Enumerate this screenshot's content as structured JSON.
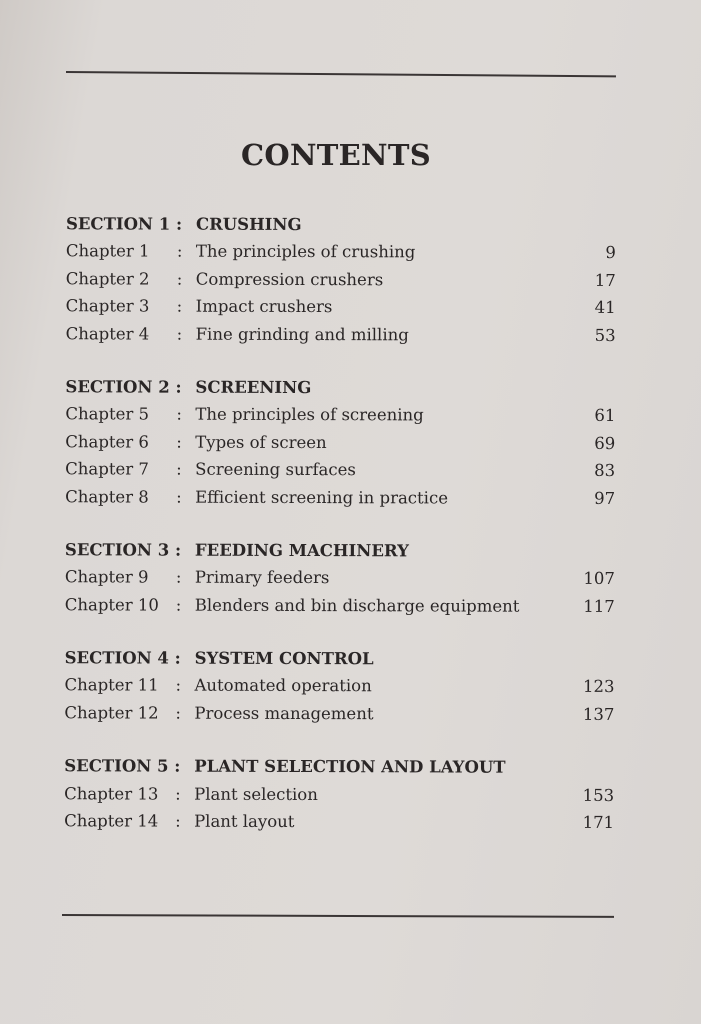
{
  "title": "CONTENTS",
  "sections": [
    {
      "label": "SECTION 1 :",
      "title": "CRUSHING",
      "chapters": [
        {
          "label": "Chapter 1",
          "title": "The principles of crushing",
          "page": "9"
        },
        {
          "label": "Chapter 2",
          "title": "Compression crushers",
          "page": "17"
        },
        {
          "label": "Chapter 3",
          "title": "Impact crushers",
          "page": "41"
        },
        {
          "label": "Chapter 4",
          "title": "Fine grinding and milling",
          "page": "53"
        }
      ]
    },
    {
      "label": "SECTION 2 :",
      "title": "SCREENING",
      "chapters": [
        {
          "label": "Chapter 5",
          "title": "The principles of screening",
          "page": "61"
        },
        {
          "label": "Chapter 6",
          "title": "Types of screen",
          "page": "69"
        },
        {
          "label": "Chapter 7",
          "title": "Screening surfaces",
          "page": "83"
        },
        {
          "label": "Chapter 8",
          "title": "Efficient screening in practice",
          "page": "97"
        }
      ]
    },
    {
      "label": "SECTION 3 :",
      "title": "FEEDING MACHINERY",
      "chapters": [
        {
          "label": "Chapter 9",
          "title": "Primary feeders",
          "page": "107"
        },
        {
          "label": "Chapter 10",
          "title": "Blenders and bin discharge equipment",
          "page": "117"
        }
      ]
    },
    {
      "label": "SECTION 4 :",
      "title": "SYSTEM CONTROL",
      "chapters": [
        {
          "label": "Chapter 11",
          "title": "Automated operation",
          "page": "123"
        },
        {
          "label": "Chapter 12",
          "title": "Process management",
          "page": "137"
        }
      ]
    },
    {
      "label": "SECTION 5 :",
      "title": "PLANT SELECTION AND LAYOUT",
      "chapters": [
        {
          "label": "Chapter 13",
          "title": "Plant selection",
          "page": "153"
        },
        {
          "label": "Chapter 14",
          "title": "Plant layout",
          "page": "171"
        }
      ]
    }
  ],
  "separator": ":"
}
